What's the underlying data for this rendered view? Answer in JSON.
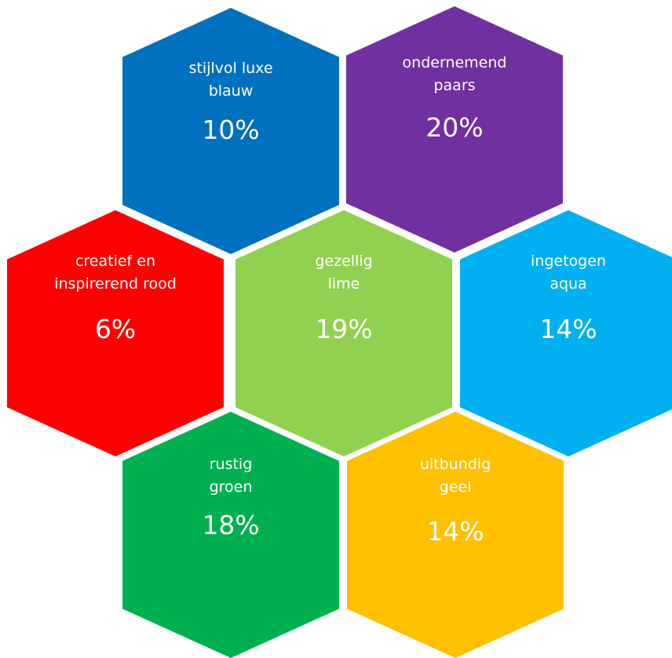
{
  "hexagons": [
    {
      "id": "blue",
      "label": "stijlvol luxe\nblauw",
      "value": "10%",
      "color": "#0070C0"
    },
    {
      "id": "purple",
      "label": "ondernemend\npaars",
      "value": "20%",
      "color": "#7030A0"
    },
    {
      "id": "red",
      "label": "creatief en\ninspirerend rood",
      "value": "6%",
      "color": "#FF0000"
    },
    {
      "id": "lime",
      "label": "gezellig\nlime",
      "value": "19%",
      "color": "#92D050"
    },
    {
      "id": "aqua",
      "label": "ingetogen\naqua",
      "value": "14%",
      "color": "#00B0F0"
    },
    {
      "id": "green",
      "label": "rustig\ngroen",
      "value": "18%",
      "color": "#00B050"
    },
    {
      "id": "yellow",
      "label": "uitbundig\ngeel",
      "value": "14%",
      "color": "#FFC000"
    }
  ]
}
